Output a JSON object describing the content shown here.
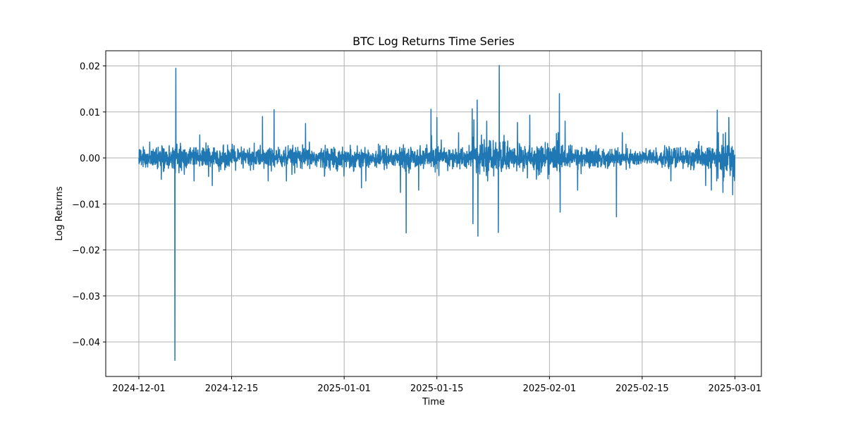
{
  "chart_data": {
    "type": "line",
    "title": "BTC Log Returns Time Series",
    "xlabel": "Time",
    "ylabel": "Log Returns",
    "x_ticks": [
      "2024-12-01",
      "2024-12-15",
      "2025-01-01",
      "2025-01-15",
      "2025-02-01",
      "2025-02-15",
      "2025-03-01"
    ],
    "y_ticks": [
      0.02,
      0.01,
      0.0,
      -0.01,
      -0.02,
      -0.03,
      -0.04
    ],
    "y_tick_labels": [
      "0.02",
      "0.01",
      "0.00",
      "−0.01",
      "−0.02",
      "−0.03",
      "−0.04"
    ],
    "xlim": [
      "2024-11-26",
      "2025-03-05"
    ],
    "ylim": [
      -0.0475,
      0.0233
    ],
    "grid": true,
    "line_color": "#1f77b4",
    "series": [
      {
        "x": [
          "2024-12-01",
          "2024-12-06",
          "2024-12-06",
          "2024-12-09",
          "2024-12-10",
          "2024-12-12",
          "2024-12-19",
          "2024-12-20",
          "2024-12-21",
          "2024-12-23",
          "2024-12-26",
          "2024-12-29",
          "2025-01-03",
          "2025-01-09",
          "2025-01-10",
          "2025-01-12",
          "2025-01-14",
          "2025-01-15",
          "2025-01-20",
          "2025-01-20",
          "2025-01-20",
          "2025-01-21",
          "2025-01-21",
          "2025-01-22",
          "2025-01-22",
          "2025-01-24",
          "2025-01-24",
          "2025-01-27",
          "2025-01-29",
          "2025-02-02",
          "2025-02-02",
          "2025-02-03",
          "2025-02-05",
          "2025-02-11",
          "2025-02-12",
          "2025-02-24",
          "2025-02-25",
          "2025-02-26",
          "2025-02-27",
          "2025-02-28",
          "2025-02-28"
        ],
        "y": [
          0.0,
          0.0195,
          -0.044,
          -0.005,
          0.005,
          -0.006,
          0.009,
          -0.005,
          0.0105,
          -0.005,
          0.0075,
          -0.004,
          -0.0065,
          -0.0075,
          -0.0163,
          -0.007,
          0.0106,
          0.0088,
          0.0083,
          -0.0143,
          0.0107,
          -0.017,
          0.0126,
          -0.005,
          0.008,
          0.0201,
          -0.0162,
          0.0077,
          0.0093,
          -0.0118,
          0.014,
          0.008,
          -0.007,
          -0.0128,
          0.0055,
          -0.006,
          -0.007,
          0.0104,
          -0.0075,
          0.0088,
          -0.008
        ]
      }
    ]
  }
}
